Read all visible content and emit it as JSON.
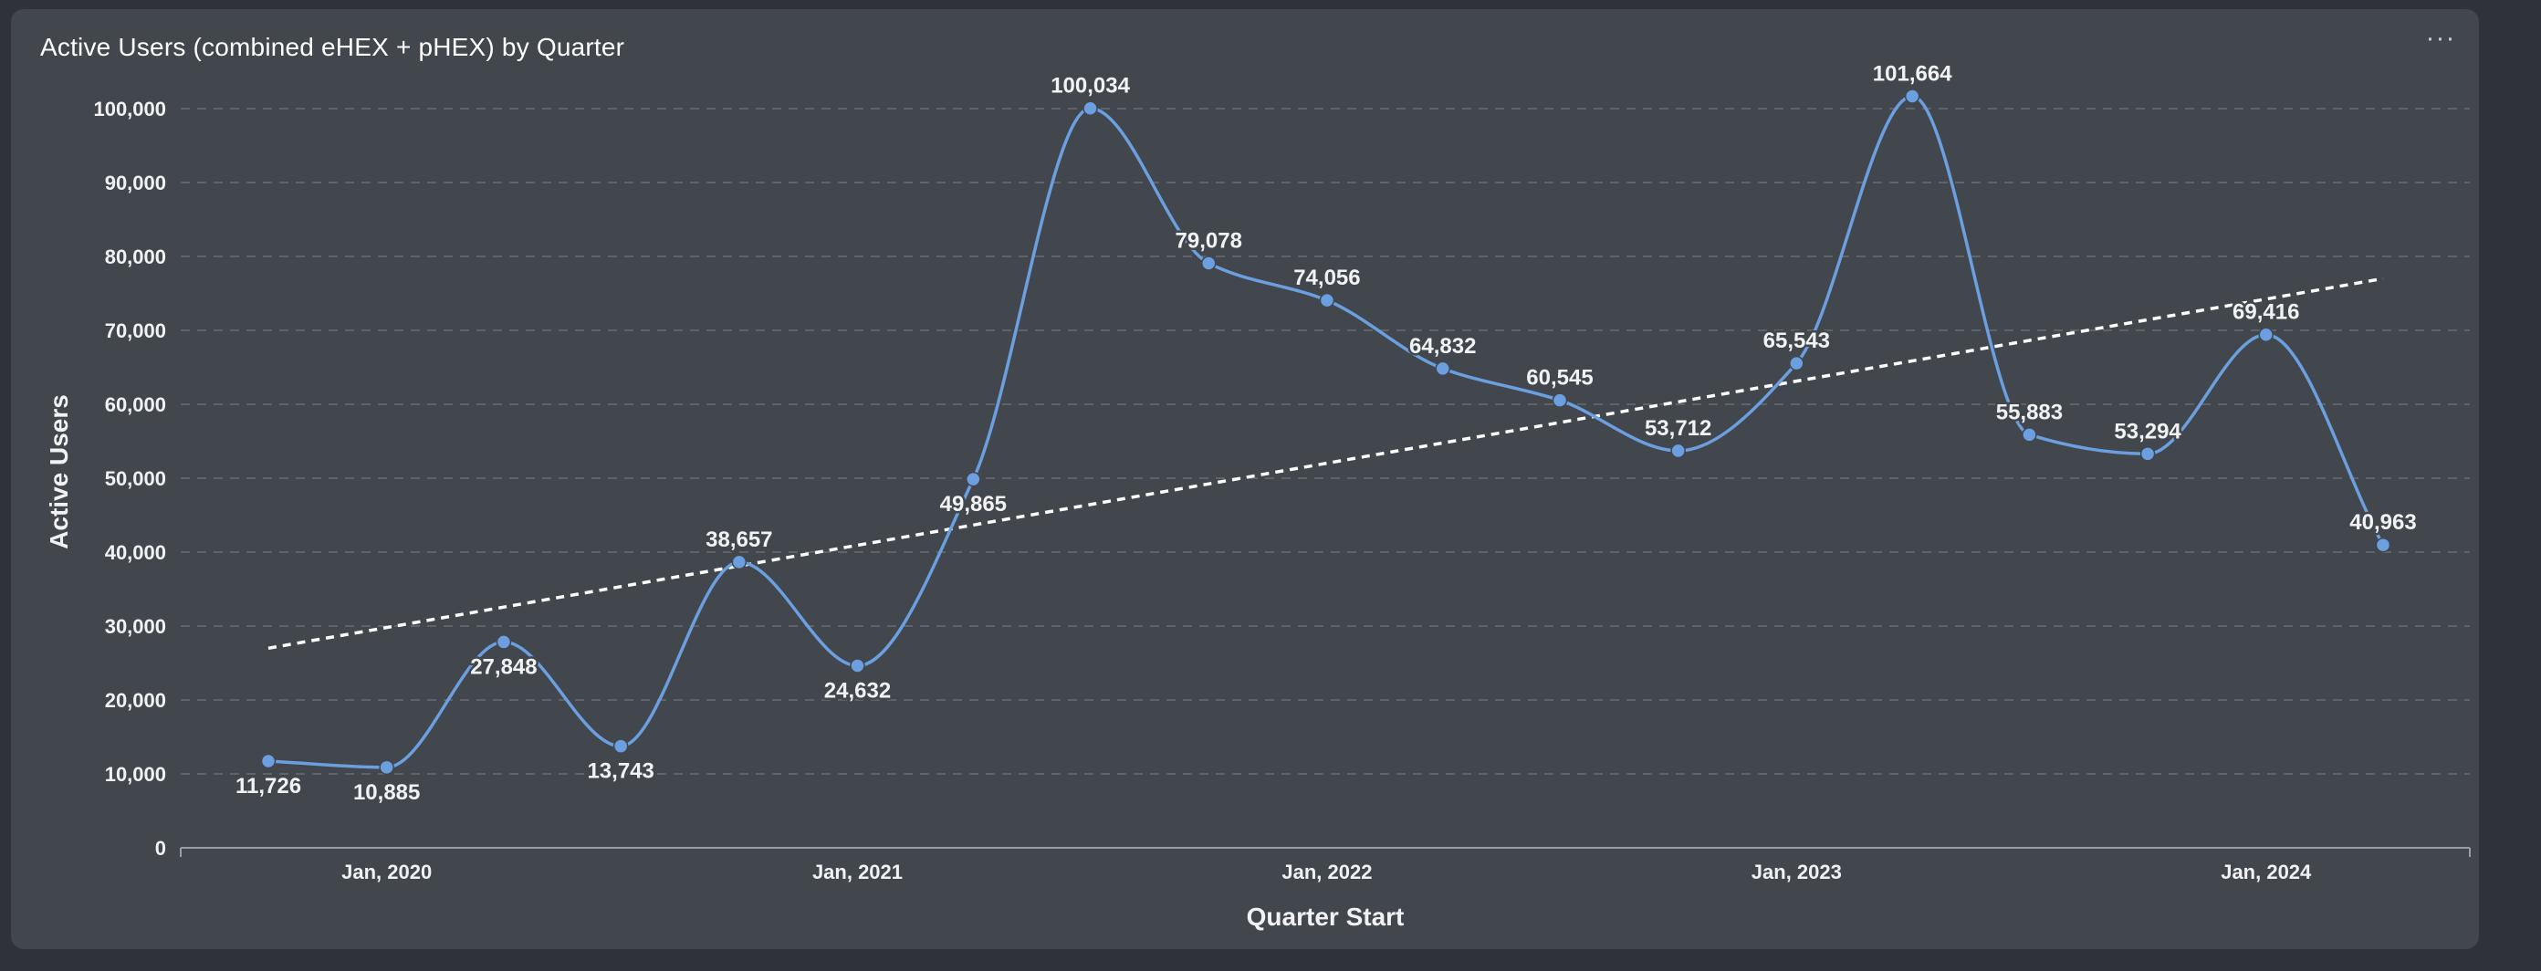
{
  "card": {
    "title": "Active Users (combined eHEX + pHEX) by Quarter",
    "menu_icon": "more-horizontal-icon"
  },
  "colors": {
    "background": "#2f3339",
    "card": "#42464d",
    "series": "#6b9fdf",
    "trend": "#ffffff",
    "grid": "#6a6e75",
    "text": "#f1f2f4"
  },
  "chart_data": {
    "type": "line",
    "title": "Active Users (combined eHEX + pHEX) by Quarter",
    "xlabel": "Quarter Start",
    "ylabel": "Active Users",
    "x": [
      "2019-10-01",
      "2020-01-01",
      "2020-04-01",
      "2020-07-01",
      "2020-10-01",
      "2021-01-01",
      "2021-04-01",
      "2021-07-01",
      "2021-10-01",
      "2022-01-01",
      "2022-04-01",
      "2022-07-01",
      "2022-10-01",
      "2023-01-01",
      "2023-04-01",
      "2023-07-01",
      "2023-10-01",
      "2024-01-01",
      "2024-04-01"
    ],
    "series": [
      {
        "name": "",
        "values": [
          11726,
          10885,
          27848,
          13743,
          38657,
          24632,
          49865,
          100034,
          79078,
          74056,
          64832,
          60545,
          53712,
          65543,
          101664,
          55883,
          53294,
          69416,
          40963
        ],
        "labels": [
          "11,726",
          "10,885",
          "27,848",
          "13,743",
          "38,657",
          "24,632",
          "49,865",
          "100,034",
          "79,078",
          "74,056",
          "64,832",
          "60,545",
          "53,712",
          "65,543",
          "101,664",
          "55,883",
          "53,294",
          "69,416",
          "40,963"
        ],
        "label_pos": [
          "below",
          "below",
          "below",
          "below",
          "above",
          "below",
          "below",
          "above",
          "above",
          "above",
          "above",
          "above",
          "above",
          "above",
          "above",
          "above",
          "above",
          "above",
          "above"
        ]
      }
    ],
    "trendline": {
      "style": "dashed",
      "start": 27000,
      "end": 77000
    },
    "xticks": [
      {
        "x": "2020-01-01",
        "label": "Jan, 2020"
      },
      {
        "x": "2021-01-01",
        "label": "Jan, 2021"
      },
      {
        "x": "2022-01-01",
        "label": "Jan, 2022"
      },
      {
        "x": "2023-01-01",
        "label": "Jan, 2023"
      },
      {
        "x": "2024-01-01",
        "label": "Jan, 2024"
      }
    ],
    "yticks": [
      {
        "v": 0,
        "label": "0"
      },
      {
        "v": 10000,
        "label": "10,000"
      },
      {
        "v": 20000,
        "label": "20,000"
      },
      {
        "v": 30000,
        "label": "30,000"
      },
      {
        "v": 40000,
        "label": "40,000"
      },
      {
        "v": 50000,
        "label": "50,000"
      },
      {
        "v": 60000,
        "label": "60,000"
      },
      {
        "v": 70000,
        "label": "70,000"
      },
      {
        "v": 80000,
        "label": "80,000"
      },
      {
        "v": 90000,
        "label": "90,000"
      },
      {
        "v": 100000,
        "label": "100,000"
      }
    ],
    "ylim": [
      0,
      100000
    ],
    "grid": true,
    "legend": "none"
  }
}
